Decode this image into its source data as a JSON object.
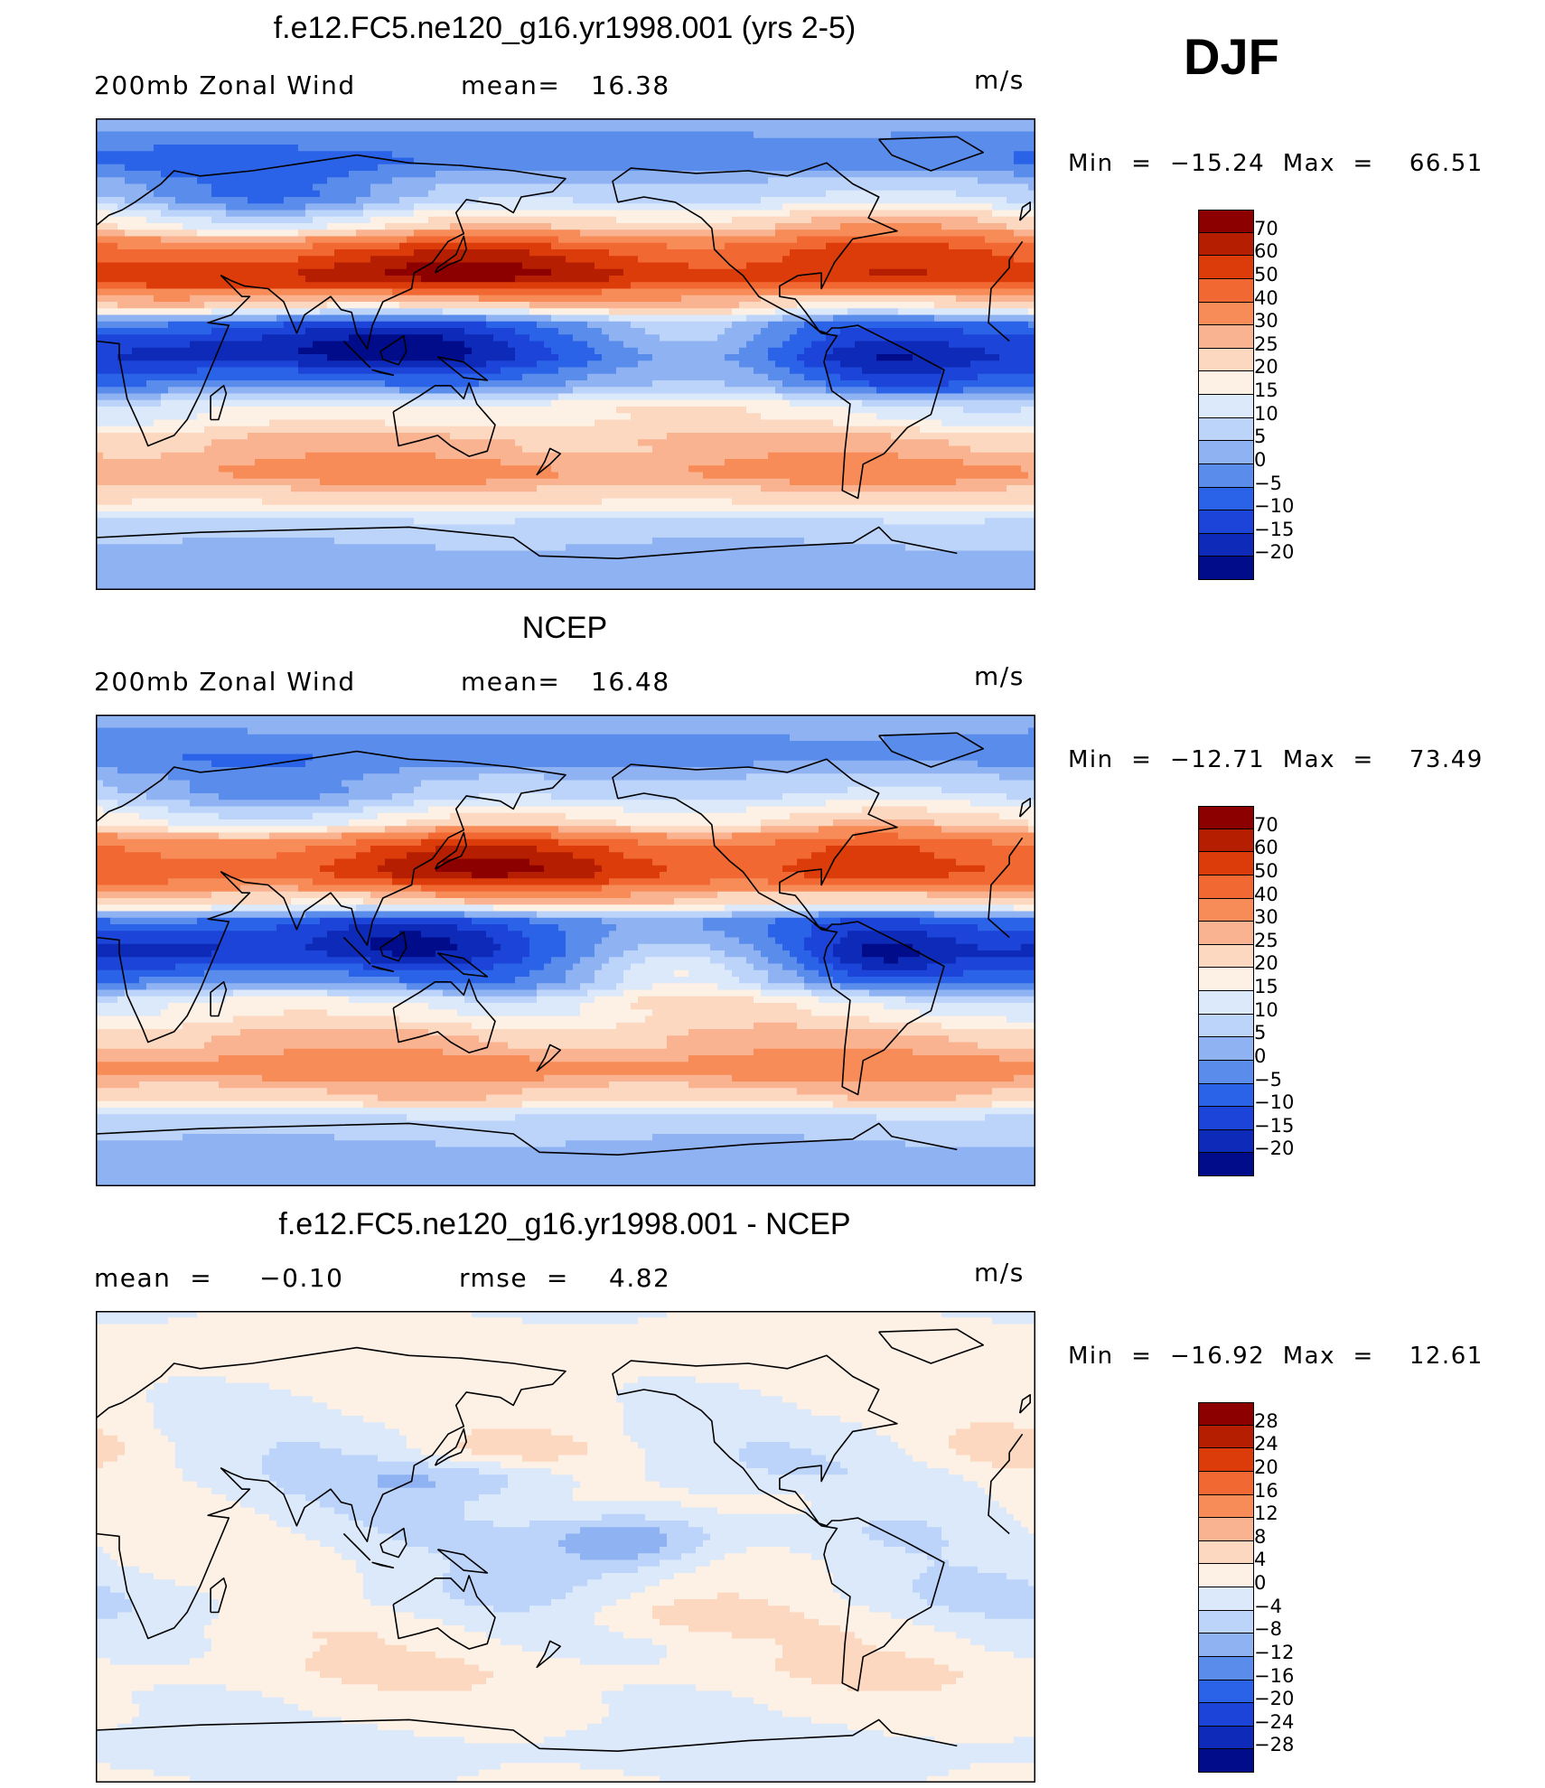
{
  "season": "DJF",
  "units": "m/s",
  "panels": [
    {
      "title": "f.e12.FC5.ne120_g16.yr1998.001 (yrs 2-5)",
      "variable": "200mb Zonal Wind",
      "stat_label": "mean=",
      "stat_value": "16.38",
      "min_text": "Min  =  −15.24  Max  =    66.51"
    },
    {
      "title": "NCEP",
      "variable": "200mb Zonal Wind",
      "stat_label": "mean=",
      "stat_value": "16.48",
      "min_text": "Min  =  −12.71  Max  =    73.49"
    },
    {
      "title": "f.e12.FC5.ne120_g16.yr1998.001 - NCEP",
      "variable": "mean  =     −0.10",
      "stat_label": "rmse  =",
      "stat_value": "4.82",
      "min_text": "Min  =  −16.92  Max  =    12.61"
    }
  ],
  "chart_data": [
    {
      "type": "heatmap",
      "title": "f.e12.FC5.ne120_g16.yr1998.001 (yrs 2-5) - 200mb Zonal Wind",
      "units": "m/s",
      "mean": 16.38,
      "min": -15.24,
      "max": 66.51,
      "colorbar_levels": [
        "70",
        "60",
        "50",
        "40",
        "30",
        "25",
        "20",
        "15",
        "10",
        "5",
        "0",
        "−5",
        "−10",
        "−15",
        "−20"
      ],
      "colorbar_colors": [
        "#8c0000",
        "#b51e00",
        "#dc3c0a",
        "#f26832",
        "#f78c58",
        "#fab390",
        "#fcd8c0",
        "#fdf0e4",
        "#dce9fa",
        "#bcd4fa",
        "#8fb2f2",
        "#5a8cec",
        "#2b63e8",
        "#1c44d8",
        "#0e2ab8",
        "#000c8a"
      ],
      "field": {
        "zones": [
          {
            "lat": 90,
            "u": 2
          },
          {
            "lat": 75,
            "u": -4
          },
          {
            "lat": 62,
            "u": 8
          },
          {
            "lat": 50,
            "u": 20
          },
          {
            "lat": 38,
            "u": 40
          },
          {
            "lat": 30,
            "u": 48
          },
          {
            "lat": 20,
            "u": 20
          },
          {
            "lat": 10,
            "u": -6
          },
          {
            "lat": 0,
            "u": -8
          },
          {
            "lat": -10,
            "u": -2
          },
          {
            "lat": -22,
            "u": 14
          },
          {
            "lat": -35,
            "u": 26
          },
          {
            "lat": -45,
            "u": 32
          },
          {
            "lat": -55,
            "u": 22
          },
          {
            "lat": -65,
            "u": 8
          },
          {
            "lat": -78,
            "u": 3
          },
          {
            "lat": -90,
            "u": 2
          }
        ],
        "features": [
          {
            "lon": 135,
            "lat": 33,
            "du": 28,
            "rx": 45,
            "ry": 8
          },
          {
            "lon": 295,
            "lat": 38,
            "du": 18,
            "rx": 35,
            "ry": 10
          },
          {
            "lon": 45,
            "lat": 26,
            "du": 8,
            "rx": 40,
            "ry": 6
          },
          {
            "lon": 40,
            "lat": 0,
            "du": -12,
            "rx": 35,
            "ry": 8
          },
          {
            "lon": 115,
            "lat": 2,
            "du": -12,
            "rx": 35,
            "ry": 8
          },
          {
            "lon": 300,
            "lat": -5,
            "du": -10,
            "rx": 25,
            "ry": 8
          },
          {
            "lon": 230,
            "lat": 10,
            "du": 10,
            "rx": 25,
            "ry": 10
          },
          {
            "lon": 70,
            "lat": 60,
            "du": -14,
            "rx": 40,
            "ry": 10
          },
          {
            "lon": 190,
            "lat": -20,
            "du": 8,
            "rx": 40,
            "ry": 8
          }
        ]
      }
    },
    {
      "type": "heatmap",
      "title": "NCEP - 200mb Zonal Wind",
      "units": "m/s",
      "mean": 16.48,
      "min": -12.71,
      "max": 73.49,
      "colorbar_levels": [
        "70",
        "60",
        "50",
        "40",
        "30",
        "25",
        "20",
        "15",
        "10",
        "5",
        "0",
        "−5",
        "−10",
        "−15",
        "−20"
      ],
      "colorbar_colors": [
        "#8c0000",
        "#b51e00",
        "#dc3c0a",
        "#f26832",
        "#f78c58",
        "#fab390",
        "#fcd8c0",
        "#fdf0e4",
        "#dce9fa",
        "#bcd4fa",
        "#8fb2f2",
        "#5a8cec",
        "#2b63e8",
        "#1c44d8",
        "#0e2ab8",
        "#000c8a"
      ],
      "field": {
        "zones": [
          {
            "lat": 90,
            "u": 2
          },
          {
            "lat": 75,
            "u": -2
          },
          {
            "lat": 62,
            "u": 8
          },
          {
            "lat": 50,
            "u": 18
          },
          {
            "lat": 38,
            "u": 38
          },
          {
            "lat": 30,
            "u": 44
          },
          {
            "lat": 20,
            "u": 22
          },
          {
            "lat": 10,
            "u": -6
          },
          {
            "lat": 0,
            "u": -6
          },
          {
            "lat": -10,
            "u": -2
          },
          {
            "lat": -22,
            "u": 16
          },
          {
            "lat": -35,
            "u": 26
          },
          {
            "lat": -45,
            "u": 34
          },
          {
            "lat": -55,
            "u": 24
          },
          {
            "lat": -65,
            "u": 8
          },
          {
            "lat": -78,
            "u": 3
          },
          {
            "lat": -90,
            "u": 2
          }
        ],
        "features": [
          {
            "lon": 145,
            "lat": 33,
            "du": 30,
            "rx": 40,
            "ry": 8
          },
          {
            "lon": 290,
            "lat": 36,
            "du": 16,
            "rx": 30,
            "ry": 10
          },
          {
            "lon": 30,
            "lat": 0,
            "du": -14,
            "rx": 35,
            "ry": 7
          },
          {
            "lon": 120,
            "lat": 2,
            "du": -12,
            "rx": 30,
            "ry": 7
          },
          {
            "lon": 300,
            "lat": -2,
            "du": -12,
            "rx": 20,
            "ry": 8
          },
          {
            "lon": 220,
            "lat": -8,
            "du": 14,
            "rx": 25,
            "ry": 10
          },
          {
            "lon": 75,
            "lat": 60,
            "du": -10,
            "rx": 40,
            "ry": 10
          }
        ]
      }
    },
    {
      "type": "heatmap",
      "title": "f.e12.FC5.ne120_g16.yr1998.001 - NCEP",
      "units": "m/s",
      "mean": -0.1,
      "rmse": 4.82,
      "min": -16.92,
      "max": 12.61,
      "colorbar_levels": [
        "28",
        "24",
        "20",
        "16",
        "12",
        "8",
        "4",
        "0",
        "−4",
        "−8",
        "−12",
        "−16",
        "−20",
        "−24",
        "−28"
      ],
      "colorbar_colors": [
        "#8c0000",
        "#b51e00",
        "#dc3c0a",
        "#f26832",
        "#f78c58",
        "#fab390",
        "#fcd8c0",
        "#fdf0e4",
        "#dce9fa",
        "#bcd4fa",
        "#8fb2f2",
        "#5a8cec",
        "#2b63e8",
        "#1c44d8",
        "#0e2ab8",
        "#000c8a"
      ],
      "field": {
        "zones": [
          {
            "lat": 90,
            "u": 0
          },
          {
            "lat": 70,
            "u": 2
          },
          {
            "lat": 55,
            "u": 1
          },
          {
            "lat": 40,
            "u": -1
          },
          {
            "lat": 25,
            "u": -2
          },
          {
            "lat": 10,
            "u": -1
          },
          {
            "lat": -5,
            "u": 0
          },
          {
            "lat": -20,
            "u": -2
          },
          {
            "lat": -35,
            "u": 1
          },
          {
            "lat": -48,
            "u": 3
          },
          {
            "lat": -60,
            "u": 1
          },
          {
            "lat": -75,
            "u": -1
          },
          {
            "lat": -90,
            "u": 0
          }
        ],
        "features": [
          {
            "lon": 205,
            "lat": 2,
            "du": -14,
            "rx": 25,
            "ry": 8
          },
          {
            "lon": 160,
            "lat": 38,
            "du": 5,
            "rx": 25,
            "ry": 5
          },
          {
            "lon": 140,
            "lat": 26,
            "du": -5,
            "rx": 30,
            "ry": 5
          },
          {
            "lon": 220,
            "lat": -25,
            "du": 6,
            "rx": 30,
            "ry": 6
          },
          {
            "lon": 350,
            "lat": 38,
            "du": 5,
            "rx": 20,
            "ry": 6
          },
          {
            "lon": 270,
            "lat": 18,
            "du": 5,
            "rx": 25,
            "ry": 6
          }
        ]
      }
    }
  ]
}
